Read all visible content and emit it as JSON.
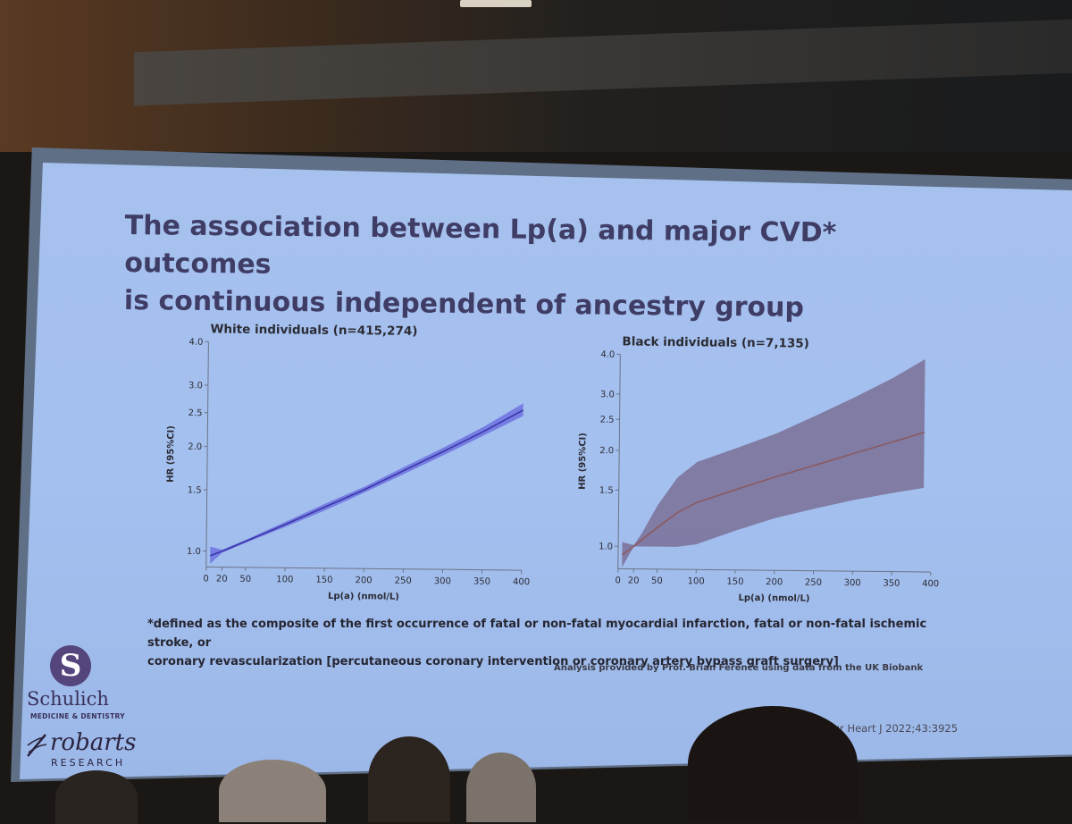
{
  "slide": {
    "title_line1": "The association between Lp(a) and major CVD* outcomes",
    "title_line2": "is continuous independent of ancestry group",
    "footnote_line1": "*defined as the composite of the first occurrence of fatal or non-fatal myocardial infarction, fatal or non-fatal ischemic stroke, or",
    "footnote_line2": "coronary revascularization [percutaneous coronary intervention or coronary artery bypass graft surgery]",
    "credit": "Analysis provided by Prof. Brian Ference using data from the UK Biobank",
    "citation": "l. Eur Heart J 2022;43:3925"
  },
  "logos": {
    "schulich_letter": "S",
    "schulich_name": "Schulich",
    "schulich_sub": "MEDICINE & DENTISTRY",
    "robarts_name": "robarts",
    "robarts_sub": "RESEARCH"
  },
  "chart_data": [
    {
      "type": "line",
      "title": "White individuals (n=415,274)",
      "xlabel": "Lp(a)  (nmol/L)",
      "ylabel": "HR (95%CI)",
      "y_scale": "log",
      "xlim": [
        0,
        400
      ],
      "ylim": [
        0.9,
        4.0
      ],
      "x_ticks": [
        0,
        20,
        50,
        100,
        150,
        200,
        250,
        300,
        350,
        400
      ],
      "y_ticks": [
        1.0,
        1.5,
        2.0,
        2.5,
        3.0,
        4.0
      ],
      "y_tick_labels": [
        "1.0",
        "1.5",
        "2.0",
        "2.5",
        "3.0",
        "4.0"
      ],
      "x": [
        5,
        20,
        50,
        100,
        150,
        200,
        250,
        300,
        350,
        400
      ],
      "y": [
        0.97,
        1.0,
        1.07,
        1.2,
        1.35,
        1.52,
        1.73,
        1.97,
        2.25,
        2.6
      ],
      "ci_lower": [
        0.92,
        0.99,
        1.06,
        1.18,
        1.32,
        1.49,
        1.69,
        1.92,
        2.19,
        2.5
      ],
      "ci_upper": [
        1.03,
        1.01,
        1.08,
        1.22,
        1.38,
        1.55,
        1.77,
        2.02,
        2.32,
        2.72
      ],
      "colors": {
        "line": "#3a36a8",
        "band": "#6f72e0"
      }
    },
    {
      "type": "line",
      "title": "Black individuals (n=7,135)",
      "xlabel": "Lp(a)  (nmol/L)",
      "ylabel": "HR (95%CI)",
      "y_scale": "log",
      "xlim": [
        0,
        400
      ],
      "ylim": [
        0.85,
        4.0
      ],
      "x_ticks": [
        0,
        20,
        50,
        100,
        150,
        200,
        250,
        300,
        350,
        400
      ],
      "y_ticks": [
        1.0,
        1.5,
        2.0,
        2.5,
        3.0,
        4.0
      ],
      "y_tick_labels": [
        "1.0",
        "1.5",
        "2.0",
        "2.5",
        "3.0",
        "4.0"
      ],
      "x": [
        5,
        20,
        30,
        50,
        75,
        100,
        150,
        200,
        250,
        300,
        350,
        390
      ],
      "y": [
        0.94,
        1.0,
        1.05,
        1.15,
        1.28,
        1.38,
        1.52,
        1.67,
        1.82,
        1.99,
        2.17,
        2.33
      ],
      "ci_lower": [
        0.86,
        1.0,
        1.0,
        1.0,
        1.0,
        1.02,
        1.13,
        1.24,
        1.33,
        1.42,
        1.5,
        1.56
      ],
      "ci_upper": [
        1.03,
        1.01,
        1.1,
        1.35,
        1.65,
        1.85,
        2.05,
        2.28,
        2.6,
        2.98,
        3.45,
        3.95
      ],
      "colors": {
        "line": "#8a5a60",
        "band": "#7a7096"
      }
    }
  ]
}
